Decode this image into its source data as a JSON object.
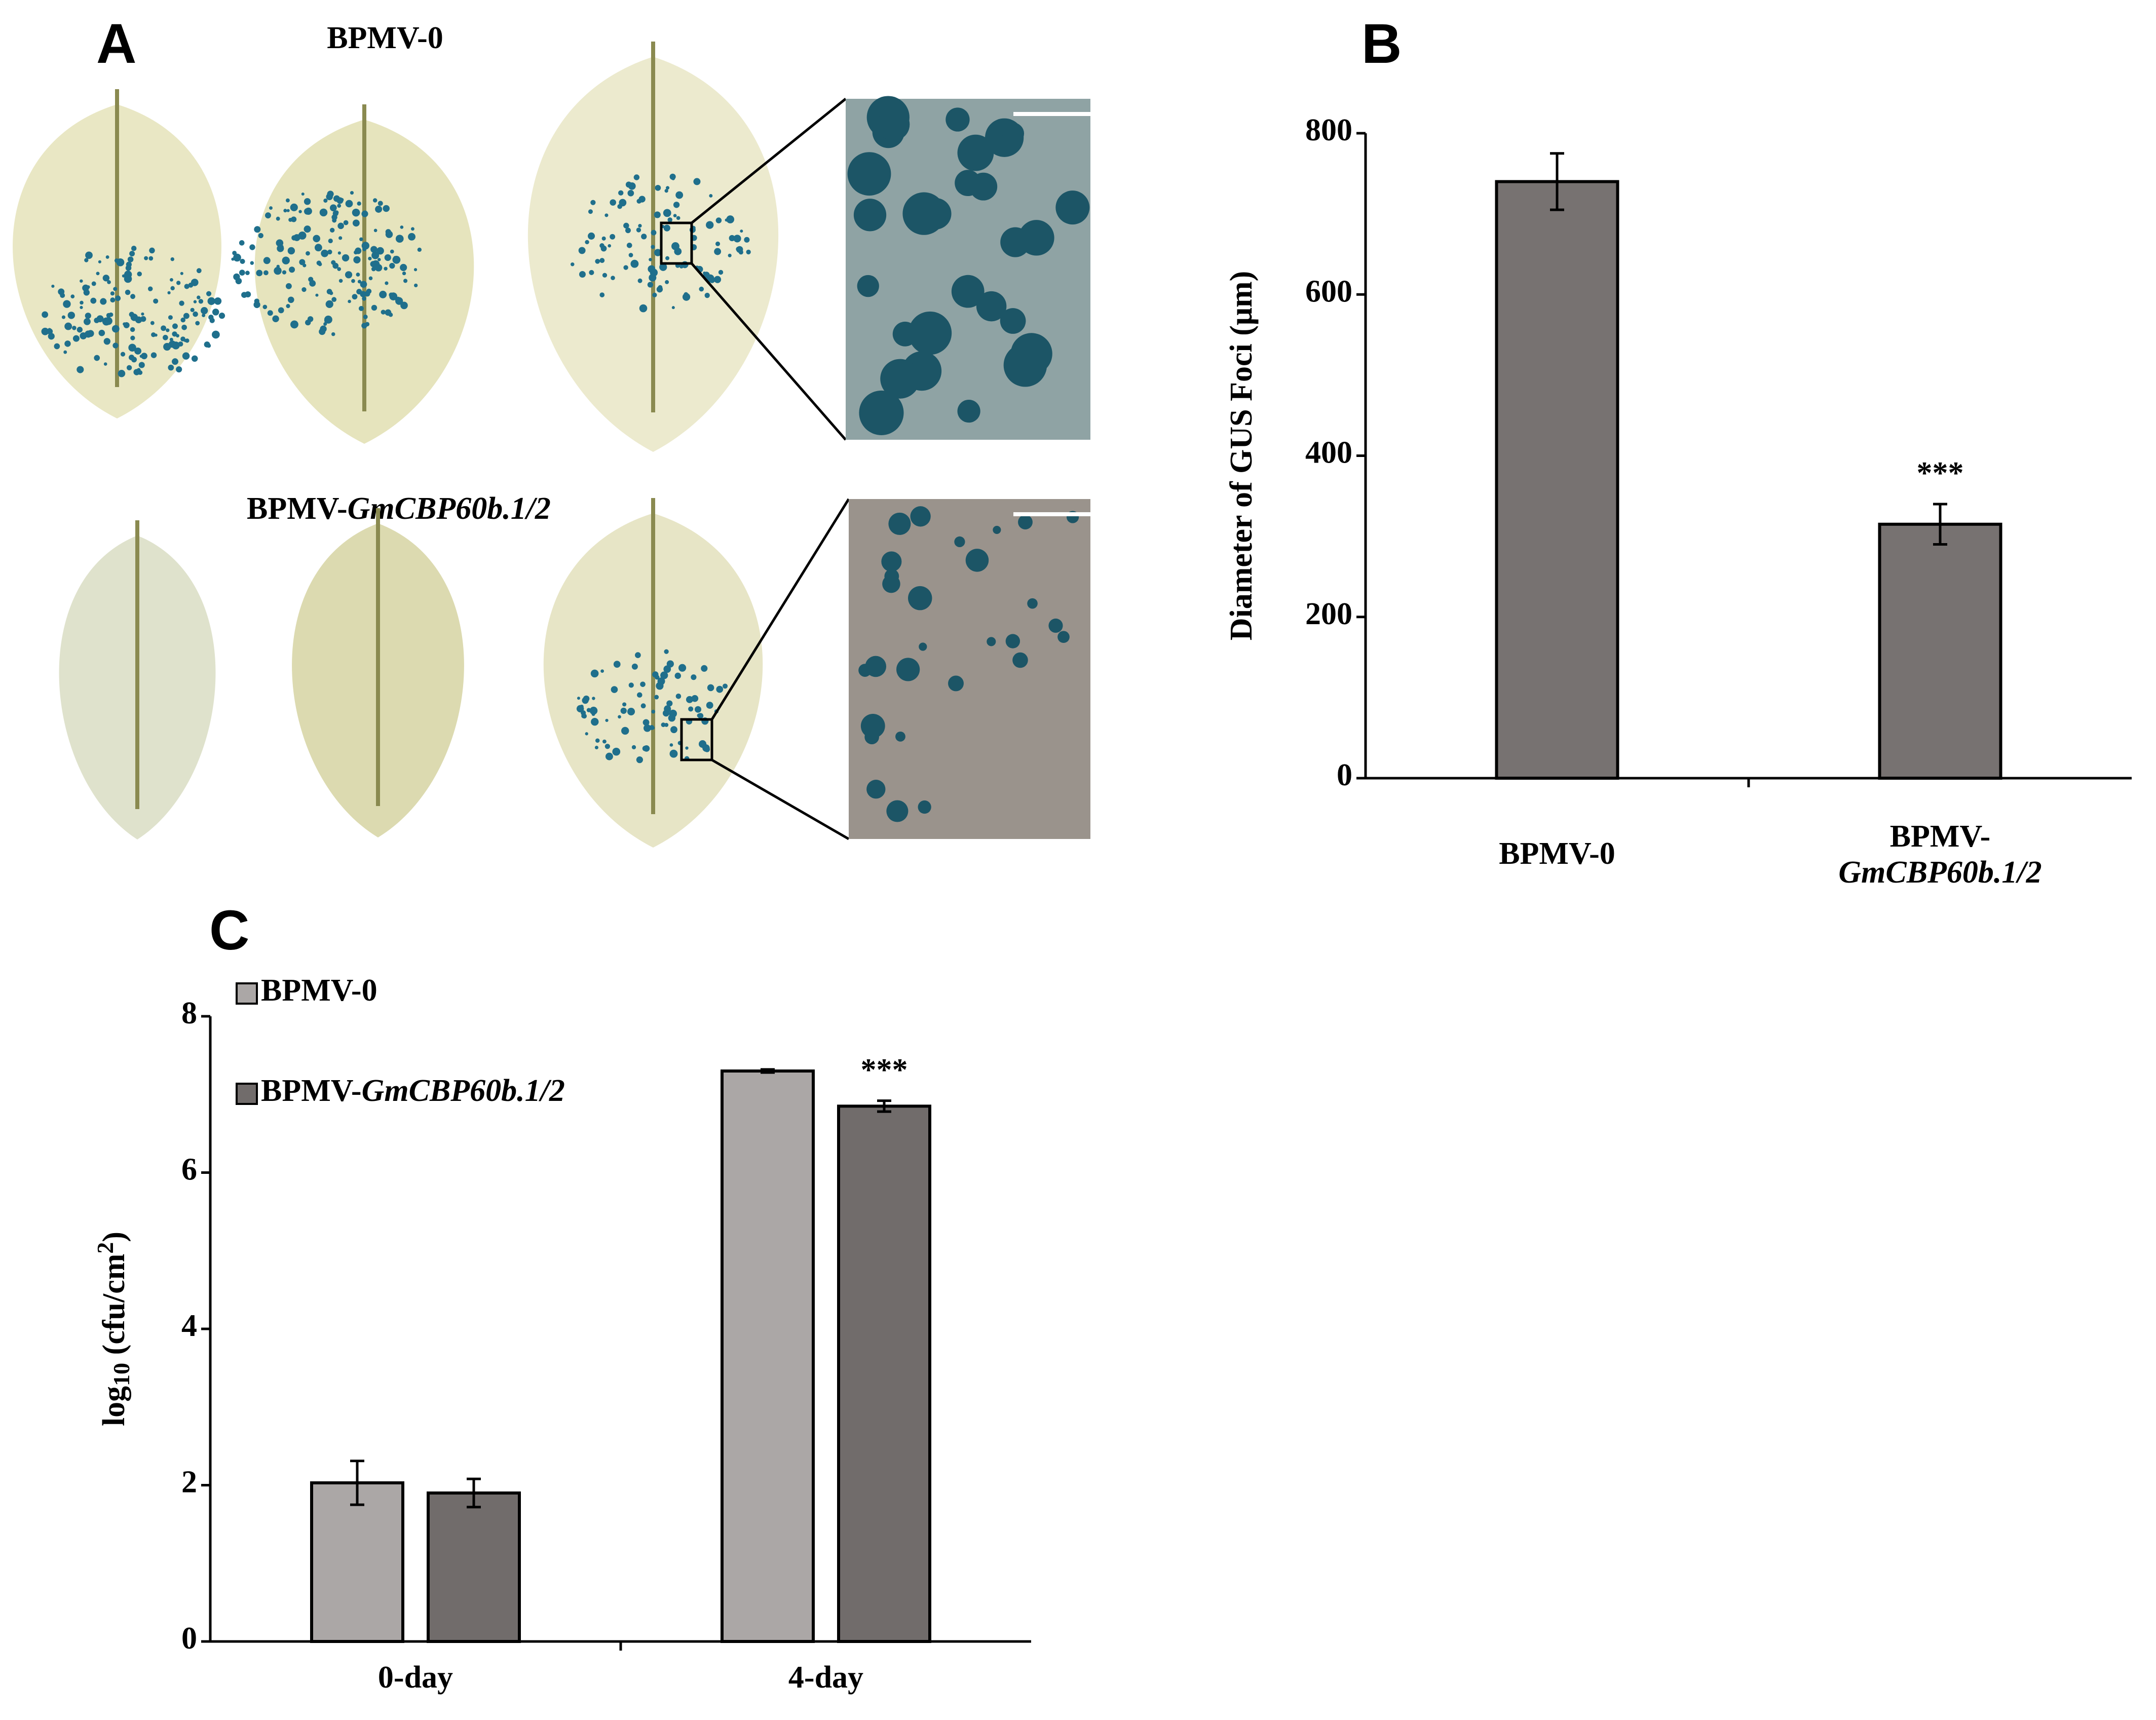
{
  "panel_a": {
    "panel_label": "A",
    "top_label": "BPMV-0",
    "bottom_label": "BPMV-GmCBP60b.1/2"
  },
  "chart_data": [
    {
      "type": "bar",
      "panel_label": "B",
      "y_label": "Diameter of GUS Foci (μm)",
      "categories": [
        "BPMV-0",
        "BPMV-GmCBP60b.1/2"
      ],
      "values": [
        740,
        315
      ],
      "errors": [
        35,
        25
      ],
      "color": "#777271",
      "ylim": [
        0,
        800
      ],
      "yticks": [
        0,
        200,
        400,
        600,
        800
      ],
      "annotation": {
        "text": "***",
        "category": "BPMV-GmCBP60b.1/2"
      }
    },
    {
      "type": "bar",
      "panel_label": "C",
      "y_label": "log10 (cfu/cm2)",
      "categories": [
        "0-day",
        "4-day"
      ],
      "series": [
        {
          "name": "BPMV-0",
          "color": "#aba7a6",
          "values": [
            2.03,
            7.3
          ],
          "errors": [
            0.28,
            0.02
          ]
        },
        {
          "name": "BPMV-GmCBP60b.1/2",
          "color": "#716c6b",
          "values": [
            1.9,
            6.85
          ],
          "errors": [
            0.18,
            0.07
          ]
        }
      ],
      "ylim": [
        0,
        8
      ],
      "yticks": [
        0,
        2,
        4,
        6,
        8
      ],
      "legend": "top-left",
      "annotation": {
        "text": "***",
        "series": "BPMV-GmCBP60b.1/2",
        "category": "4-day"
      }
    }
  ]
}
